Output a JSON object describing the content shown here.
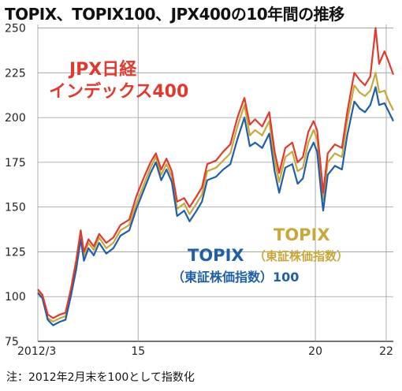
{
  "title": "TOPIX、TOPIX100、JPX400の10年間の推移",
  "note": "注：2012年2月末を100として指数化",
  "chart_data": {
    "type": "line",
    "title": "TOPIX、TOPIX100、JPX400の10年間の推移",
    "xlabel": "",
    "ylabel": "",
    "ylim": [
      75,
      252
    ],
    "xlim": [
      2012.17,
      2022.2
    ],
    "grid": true,
    "y_ticks": [
      "250",
      "225",
      "200",
      "175",
      "150",
      "125",
      "100",
      "75"
    ],
    "y_tick_values": [
      250,
      225,
      200,
      175,
      150,
      125,
      100,
      75
    ],
    "x_ticks": [
      "2012/3",
      "15",
      "20",
      "22"
    ],
    "x_tick_values": [
      2012.17,
      2015.0,
      2020.0,
      2022.0
    ],
    "series": [
      {
        "name": "TOPIX（東証株価指数）",
        "label_lines": [
          "TOPIX",
          "（東証株価指数）"
        ],
        "color": "#c8a83c",
        "points": [
          [
            2012.17,
            103
          ],
          [
            2012.3,
            100
          ],
          [
            2012.45,
            88
          ],
          [
            2012.6,
            86
          ],
          [
            2012.8,
            88
          ],
          [
            2012.95,
            89
          ],
          [
            2013.1,
            102
          ],
          [
            2013.25,
            118
          ],
          [
            2013.38,
            135
          ],
          [
            2013.47,
            123
          ],
          [
            2013.6,
            130
          ],
          [
            2013.75,
            126
          ],
          [
            2013.9,
            133
          ],
          [
            2014.1,
            127
          ],
          [
            2014.3,
            130
          ],
          [
            2014.5,
            137
          ],
          [
            2014.75,
            140
          ],
          [
            2014.95,
            152
          ],
          [
            2015.15,
            162
          ],
          [
            2015.35,
            172
          ],
          [
            2015.5,
            178
          ],
          [
            2015.65,
            168
          ],
          [
            2015.8,
            174
          ],
          [
            2015.95,
            167
          ],
          [
            2016.1,
            149
          ],
          [
            2016.3,
            152
          ],
          [
            2016.45,
            146
          ],
          [
            2016.65,
            152
          ],
          [
            2016.8,
            157
          ],
          [
            2016.95,
            170
          ],
          [
            2017.2,
            172
          ],
          [
            2017.4,
            176
          ],
          [
            2017.6,
            180
          ],
          [
            2017.8,
            195
          ],
          [
            2018.0,
            207
          ],
          [
            2018.15,
            190
          ],
          [
            2018.3,
            193
          ],
          [
            2018.5,
            190
          ],
          [
            2018.7,
            198
          ],
          [
            2018.85,
            176
          ],
          [
            2018.98,
            164
          ],
          [
            2019.15,
            178
          ],
          [
            2019.35,
            181
          ],
          [
            2019.5,
            170
          ],
          [
            2019.65,
            172
          ],
          [
            2019.8,
            186
          ],
          [
            2019.95,
            193
          ],
          [
            2020.05,
            188
          ],
          [
            2020.15,
            168
          ],
          [
            2020.22,
            154
          ],
          [
            2020.35,
            175
          ],
          [
            2020.55,
            180
          ],
          [
            2020.75,
            178
          ],
          [
            2020.9,
            198
          ],
          [
            2021.1,
            218
          ],
          [
            2021.25,
            214
          ],
          [
            2021.4,
            212
          ],
          [
            2021.55,
            215
          ],
          [
            2021.7,
            225
          ],
          [
            2021.8,
            214
          ],
          [
            2021.95,
            215
          ],
          [
            2022.05,
            210
          ],
          [
            2022.2,
            204
          ]
        ]
      },
      {
        "name": "TOPIX100",
        "label_lines": [
          "TOPIX",
          "（東証株価指数）100"
        ],
        "color": "#1f5fa8",
        "points": [
          [
            2012.17,
            102
          ],
          [
            2012.3,
            99
          ],
          [
            2012.45,
            87
          ],
          [
            2012.6,
            84
          ],
          [
            2012.8,
            86
          ],
          [
            2012.95,
            87
          ],
          [
            2013.1,
            100
          ],
          [
            2013.25,
            115
          ],
          [
            2013.38,
            132
          ],
          [
            2013.47,
            120
          ],
          [
            2013.6,
            127
          ],
          [
            2013.75,
            123
          ],
          [
            2013.9,
            130
          ],
          [
            2014.1,
            124
          ],
          [
            2014.3,
            127
          ],
          [
            2014.5,
            134
          ],
          [
            2014.75,
            137
          ],
          [
            2014.95,
            149
          ],
          [
            2015.15,
            159
          ],
          [
            2015.35,
            169
          ],
          [
            2015.5,
            175
          ],
          [
            2015.65,
            165
          ],
          [
            2015.8,
            171
          ],
          [
            2015.95,
            164
          ],
          [
            2016.1,
            145
          ],
          [
            2016.3,
            148
          ],
          [
            2016.45,
            142
          ],
          [
            2016.65,
            148
          ],
          [
            2016.8,
            153
          ],
          [
            2016.95,
            165
          ],
          [
            2017.2,
            167
          ],
          [
            2017.4,
            171
          ],
          [
            2017.6,
            174
          ],
          [
            2017.8,
            188
          ],
          [
            2018.0,
            200
          ],
          [
            2018.15,
            184
          ],
          [
            2018.3,
            186
          ],
          [
            2018.5,
            183
          ],
          [
            2018.7,
            191
          ],
          [
            2018.85,
            170
          ],
          [
            2018.98,
            158
          ],
          [
            2019.15,
            172
          ],
          [
            2019.35,
            174
          ],
          [
            2019.5,
            163
          ],
          [
            2019.65,
            166
          ],
          [
            2019.8,
            180
          ],
          [
            2019.95,
            186
          ],
          [
            2020.05,
            181
          ],
          [
            2020.15,
            161
          ],
          [
            2020.22,
            148
          ],
          [
            2020.35,
            168
          ],
          [
            2020.55,
            173
          ],
          [
            2020.75,
            171
          ],
          [
            2020.9,
            190
          ],
          [
            2021.1,
            209
          ],
          [
            2021.25,
            205
          ],
          [
            2021.4,
            203
          ],
          [
            2021.55,
            207
          ],
          [
            2021.7,
            217
          ],
          [
            2021.8,
            207
          ],
          [
            2021.95,
            208
          ],
          [
            2022.05,
            204
          ],
          [
            2022.2,
            198
          ]
        ]
      },
      {
        "name": "JPX日経インデックス400",
        "label_lines": [
          "JPX日経",
          "インデックス400"
        ],
        "color": "#e03a2f",
        "points": [
          [
            2012.17,
            104
          ],
          [
            2012.3,
            101
          ],
          [
            2012.45,
            90
          ],
          [
            2012.6,
            88
          ],
          [
            2012.8,
            90
          ],
          [
            2012.95,
            91
          ],
          [
            2013.1,
            104
          ],
          [
            2013.25,
            120
          ],
          [
            2013.38,
            137
          ],
          [
            2013.47,
            125
          ],
          [
            2013.6,
            132
          ],
          [
            2013.75,
            128
          ],
          [
            2013.9,
            135
          ],
          [
            2014.1,
            130
          ],
          [
            2014.3,
            133
          ],
          [
            2014.5,
            140
          ],
          [
            2014.75,
            143
          ],
          [
            2014.95,
            156
          ],
          [
            2015.15,
            166
          ],
          [
            2015.35,
            175
          ],
          [
            2015.5,
            180
          ],
          [
            2015.65,
            171
          ],
          [
            2015.8,
            177
          ],
          [
            2015.95,
            170
          ],
          [
            2016.1,
            153
          ],
          [
            2016.3,
            155
          ],
          [
            2016.45,
            150
          ],
          [
            2016.65,
            156
          ],
          [
            2016.8,
            161
          ],
          [
            2016.95,
            174
          ],
          [
            2017.2,
            176
          ],
          [
            2017.4,
            181
          ],
          [
            2017.6,
            185
          ],
          [
            2017.8,
            200
          ],
          [
            2018.0,
            211
          ],
          [
            2018.15,
            196
          ],
          [
            2018.3,
            199
          ],
          [
            2018.5,
            195
          ],
          [
            2018.7,
            203
          ],
          [
            2018.85,
            181
          ],
          [
            2018.98,
            169
          ],
          [
            2019.15,
            183
          ],
          [
            2019.35,
            186
          ],
          [
            2019.5,
            175
          ],
          [
            2019.65,
            178
          ],
          [
            2019.8,
            192
          ],
          [
            2019.95,
            198
          ],
          [
            2020.05,
            193
          ],
          [
            2020.15,
            173
          ],
          [
            2020.22,
            158
          ],
          [
            2020.35,
            180
          ],
          [
            2020.55,
            185
          ],
          [
            2020.75,
            183
          ],
          [
            2020.9,
            203
          ],
          [
            2021.1,
            225
          ],
          [
            2021.25,
            221
          ],
          [
            2021.4,
            218
          ],
          [
            2021.55,
            223
          ],
          [
            2021.7,
            250
          ],
          [
            2021.8,
            230
          ],
          [
            2021.95,
            237
          ],
          [
            2022.05,
            232
          ],
          [
            2022.2,
            224
          ]
        ]
      }
    ]
  }
}
